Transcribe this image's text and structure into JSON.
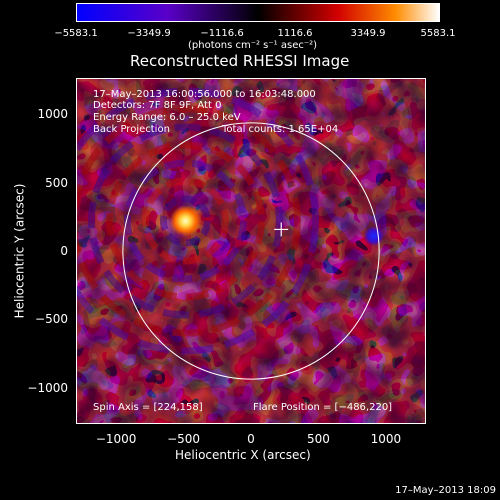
{
  "colorbar": {
    "ticks": [
      "−5583.1",
      "−3349.9",
      "−1116.6",
      "1116.6",
      "3349.9",
      "5583.1"
    ],
    "units": "(photons cm⁻² s⁻¹ asec⁻²)",
    "colors": [
      "#0000ff",
      "#4b00c8",
      "#000000",
      "#c80000",
      "#ff6a00",
      "#ffffff"
    ]
  },
  "title": "Reconstructed RHESSI Image",
  "info": {
    "time_range": "17–May–2013 16:00:56.000 to 16:03:48.000",
    "detectors": "Detectors: 7F 8F 9F, Att 0",
    "energy_range": "Energy Range: 6.0 – 25.0 keV",
    "method": "Back Projection",
    "total_counts": "Total counts: 1.65E+04",
    "spin_axis": "Spin Axis = [224,158]",
    "flare_position": "Flare Position = [−486,220]"
  },
  "axes": {
    "xlabel": "Heliocentric X (arcsec)",
    "ylabel": "Heliocentric Y (arcsec)",
    "xticks": [
      "−1000",
      "−500",
      "0",
      "500",
      "1000"
    ],
    "xtick_values": [
      -1000,
      -500,
      0,
      500,
      1000
    ],
    "yticks": [
      "1000",
      "500",
      "0",
      "−500",
      "−1000"
    ],
    "ytick_values": [
      1000,
      500,
      0,
      -500,
      -1000
    ],
    "xlim": [
      -1290,
      1290
    ],
    "ylim": [
      -1260,
      1260
    ]
  },
  "image": {
    "solar_radius_arcsec": 950,
    "flare_source": {
      "x": -486,
      "y": 220,
      "color": "#ffff66"
    },
    "spin_axis": {
      "x": 224,
      "y": 158
    },
    "negative_source": {
      "x": 910,
      "y": 110,
      "color": "#2222ff"
    }
  },
  "footer": {
    "timestamp": "17–May–2013 18:09"
  }
}
